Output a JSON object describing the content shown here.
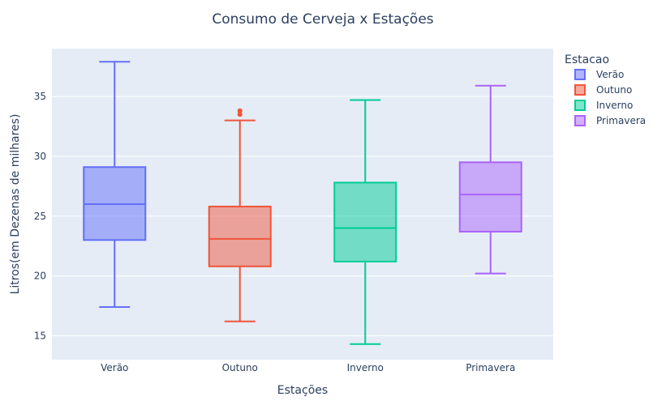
{
  "chart_data": {
    "type": "box",
    "title": "Consumo de Cerveja x Estações",
    "xlabel": "Estações",
    "ylabel": "Litros(em Dezenas de milhares)",
    "ylim": [
      13,
      39
    ],
    "yticks": [
      15,
      20,
      25,
      30,
      35
    ],
    "categories": [
      "Verão",
      "Outuno",
      "Inverno",
      "Primavera"
    ],
    "legend_title": "Estacao",
    "series": [
      {
        "name": "Verão",
        "color": "#636efa",
        "min": 17.4,
        "q1": 23.0,
        "median": 26.0,
        "q3": 29.1,
        "max": 37.9,
        "outliers": []
      },
      {
        "name": "Outuno",
        "color": "#ef553b",
        "min": 16.2,
        "q1": 20.8,
        "median": 23.1,
        "q3": 25.8,
        "max": 33.0,
        "outliers": [
          33.5,
          33.8
        ]
      },
      {
        "name": "Inverno",
        "color": "#00cc96",
        "min": 14.3,
        "q1": 21.2,
        "median": 24.0,
        "q3": 27.8,
        "max": 34.7,
        "outliers": []
      },
      {
        "name": "Primavera",
        "color": "#ab63fa",
        "min": 20.2,
        "q1": 23.7,
        "median": 26.8,
        "q3": 29.5,
        "max": 35.9,
        "outliers": []
      }
    ]
  }
}
